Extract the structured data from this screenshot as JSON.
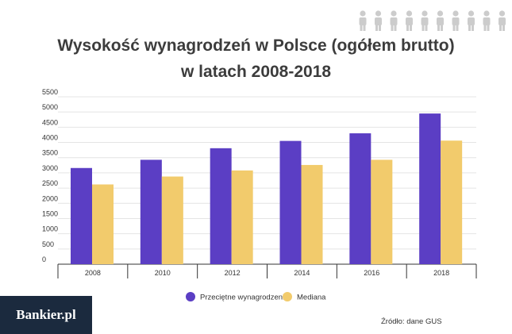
{
  "branding": {
    "logo": "Bankier.pl",
    "people_icon": "person-icon",
    "people_color": "#cccccc"
  },
  "source": "Źródło: dane GUS",
  "chart_data": {
    "type": "bar",
    "title": [
      "Wysokość wynagrodzeń w Polsce (ogółem brutto)",
      "w latach 2008-2018"
    ],
    "categories": [
      "2008",
      "2010",
      "2012",
      "2014",
      "2016",
      "2018"
    ],
    "series": [
      {
        "name": "Przeciętne wynagrodzenie",
        "color": "#5b3ec4",
        "values": [
          3160,
          3430,
          3810,
          4050,
          4300,
          4950
        ]
      },
      {
        "name": "Mediana",
        "color": "#f2cb6c",
        "values": [
          2620,
          2880,
          3080,
          3260,
          3430,
          4060
        ]
      }
    ],
    "ylim": [
      0,
      5500
    ],
    "yticks": [
      "0",
      "500",
      "1000",
      "1500",
      "2000",
      "2500",
      "3000",
      "3500",
      "4000",
      "4500",
      "5000",
      "5500"
    ],
    "grid": true,
    "legend_position": "bottom"
  }
}
